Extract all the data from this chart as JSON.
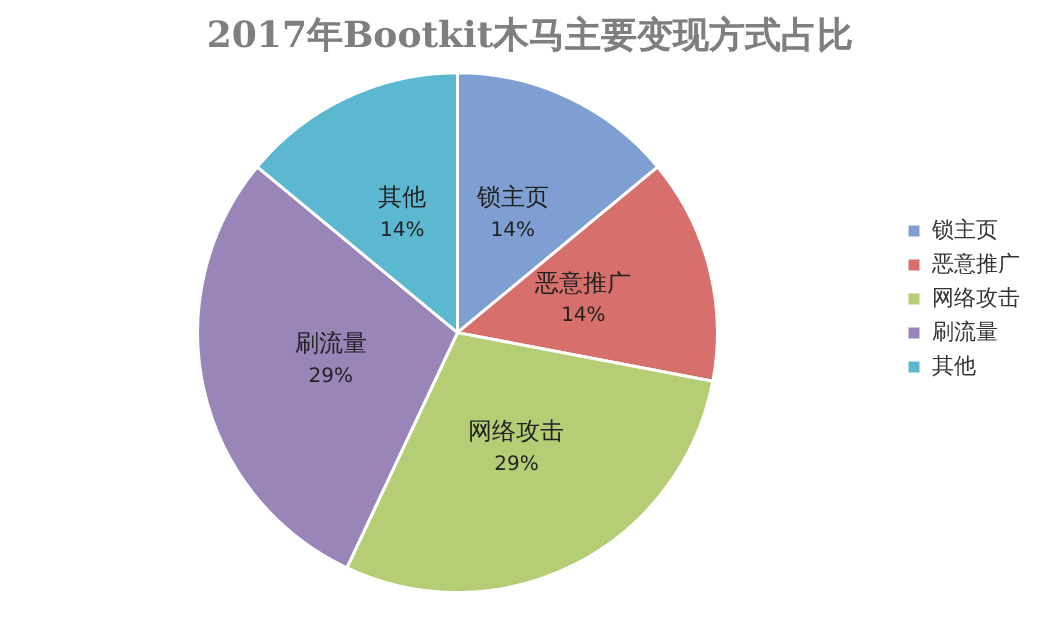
{
  "chart_data": {
    "type": "pie",
    "title": "2017年Bootkit木马主要变现方式占比",
    "categories": [
      "锁主页",
      "恶意推广",
      "网络攻击",
      "刷流量",
      "其他"
    ],
    "values": [
      14,
      14,
      29,
      29,
      14
    ],
    "colors": [
      "#7f9fd2",
      "#d7706c",
      "#b5cd75",
      "#9a85b9",
      "#5bb8d0"
    ],
    "value_labels": [
      "14%",
      "14%",
      "29%",
      "29%",
      "14%"
    ],
    "legend": "right"
  }
}
